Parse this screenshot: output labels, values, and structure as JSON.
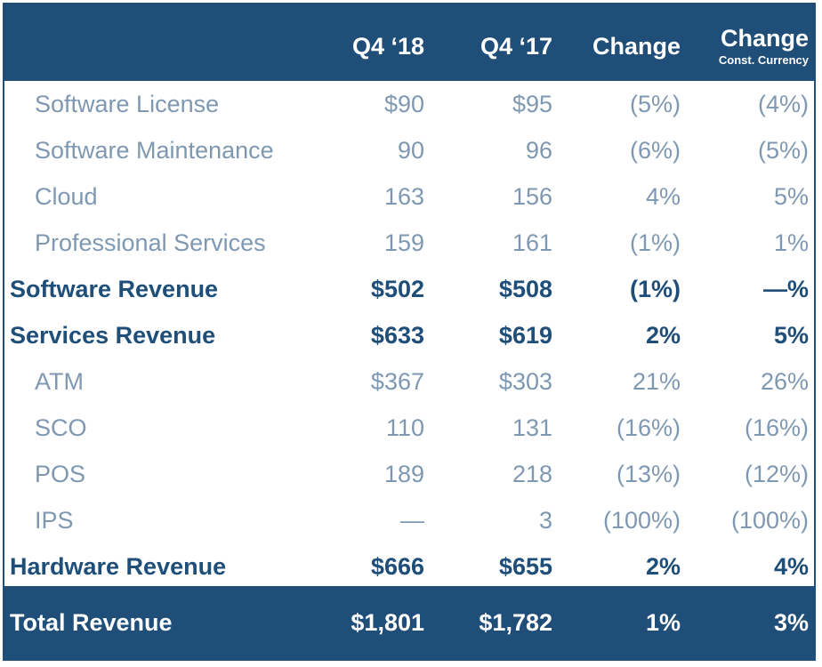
{
  "header": {
    "col1": "Q4 ‘18",
    "col2": "Q4 ‘17",
    "col3": "Change",
    "col4": "Change",
    "col4_sub": "Const. Currency"
  },
  "rows": [
    {
      "label": "Software License",
      "v1": "$90",
      "v2": "$95",
      "v3": "(5%)",
      "v4": "(4%)"
    },
    {
      "label": "Software Maintenance",
      "v1": "90",
      "v2": "96",
      "v3": "(6%)",
      "v4": "(5%)"
    },
    {
      "label": "Cloud",
      "v1": "163",
      "v2": "156",
      "v3": "4%",
      "v4": "5%"
    },
    {
      "label": "Professional Services",
      "v1": "159",
      "v2": "161",
      "v3": "(1%)",
      "v4": "1%"
    },
    {
      "label": "Software Revenue",
      "v1": "$502",
      "v2": "$508",
      "v3": "(1%)",
      "v4": "—%"
    },
    {
      "label": "Services Revenue",
      "v1": "$633",
      "v2": "$619",
      "v3": "2%",
      "v4": "5%"
    },
    {
      "label": "ATM",
      "v1": "$367",
      "v2": "$303",
      "v3": "21%",
      "v4": "26%"
    },
    {
      "label": "SCO",
      "v1": "110",
      "v2": "131",
      "v3": "(16%)",
      "v4": "(16%)"
    },
    {
      "label": "POS",
      "v1": "189",
      "v2": "218",
      "v3": "(13%)",
      "v4": "(12%)"
    },
    {
      "label": "IPS",
      "v1": "—",
      "v2": "3",
      "v3": "(100%)",
      "v4": "(100%)"
    },
    {
      "label": "Hardware Revenue",
      "v1": "$666",
      "v2": "$655",
      "v3": "2%",
      "v4": "4%"
    }
  ],
  "total": {
    "label": "Total Revenue",
    "v1": "$1,801",
    "v2": "$1,782",
    "v3": "1%",
    "v4": "3%"
  },
  "colors": {
    "header_bg": "#1f4e79",
    "sub_text": "#7f98b2",
    "total_text": "#1f4e79"
  }
}
